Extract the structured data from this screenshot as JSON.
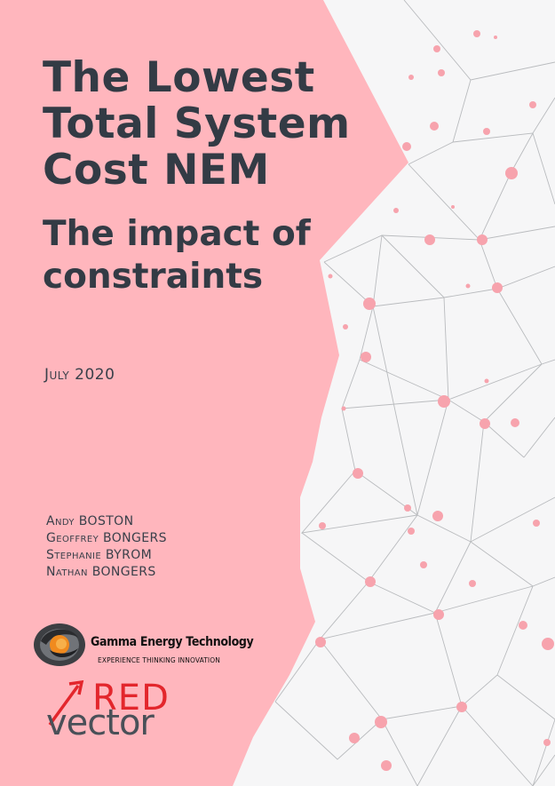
{
  "cover": {
    "title": "The Lowest Total System Cost NEM",
    "subtitle": "The impact of constraints",
    "date": "July 2020",
    "authors": [
      "Andy BOSTON",
      "Geoffrey BONGERS",
      "Stephanie BYROM",
      "Nathan BONGERS"
    ]
  },
  "logos": {
    "gamma": {
      "name": "Gamma Energy Technology",
      "tagline": "EXPERIENCE   THINKING   INNOVATION"
    },
    "redvector": {
      "red": "RED",
      "vector": "vector"
    }
  },
  "colors": {
    "accent_pink": "#ffb6bd",
    "text_dark": "#333b45",
    "background": "#f6f6f7",
    "logo_red": "#e3262c",
    "node_pink": "#f7a3ad"
  }
}
